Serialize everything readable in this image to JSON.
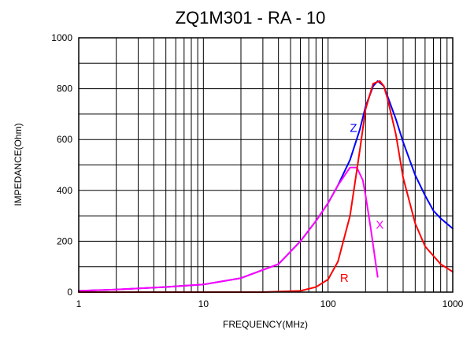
{
  "chart_data": {
    "type": "line",
    "title": "ZQ1M301 - RA - 10",
    "xlabel": "FREQUENCY(MHz)",
    "ylabel": "IMPEDANCE(Ohm)",
    "x_scale": "log",
    "xlim": [
      1,
      1000
    ],
    "ylim": [
      0,
      1000
    ],
    "x_ticks": [
      1,
      10,
      100,
      1000
    ],
    "x_tick_labels": [
      "1",
      "10",
      "100",
      "1000"
    ],
    "y_ticks": [
      0,
      200,
      400,
      600,
      800,
      1000
    ],
    "y_tick_labels": [
      "0",
      "200",
      "400",
      "600",
      "800",
      "1000"
    ],
    "grid": true,
    "series": [
      {
        "name": "Z",
        "color": "#0000ff",
        "x": [
          1,
          2,
          5,
          10,
          20,
          40,
          60,
          80,
          100,
          120,
          150,
          180,
          200,
          230,
          250,
          280,
          300,
          350,
          400,
          500,
          600,
          700,
          800,
          1000
        ],
        "y": [
          5,
          10,
          20,
          30,
          55,
          110,
          200,
          280,
          350,
          420,
          520,
          640,
          730,
          810,
          830,
          810,
          770,
          680,
          590,
          460,
          380,
          320,
          290,
          250
        ]
      },
      {
        "name": "X",
        "color": "#ff00ff",
        "x": [
          1,
          2,
          5,
          10,
          20,
          40,
          60,
          80,
          100,
          120,
          150,
          170,
          190,
          200,
          220,
          240,
          250
        ],
        "y": [
          5,
          10,
          20,
          30,
          55,
          110,
          200,
          280,
          350,
          420,
          490,
          490,
          440,
          380,
          250,
          120,
          60
        ]
      },
      {
        "name": "R",
        "color": "#ff0000",
        "x": [
          1,
          10,
          30,
          60,
          80,
          100,
          120,
          150,
          180,
          200,
          230,
          260,
          280,
          300,
          350,
          400,
          500,
          600,
          800,
          1000
        ],
        "y": [
          0,
          0,
          0,
          5,
          20,
          50,
          120,
          300,
          560,
          720,
          820,
          830,
          810,
          760,
          620,
          450,
          270,
          180,
          110,
          80
        ]
      }
    ],
    "series_labels": [
      {
        "series": "Z",
        "text": "Z",
        "x": 160,
        "y": 630
      },
      {
        "series": "X",
        "text": "X",
        "x": 260,
        "y": 250
      },
      {
        "series": "R",
        "text": "R",
        "x": 135,
        "y": 40
      }
    ]
  }
}
